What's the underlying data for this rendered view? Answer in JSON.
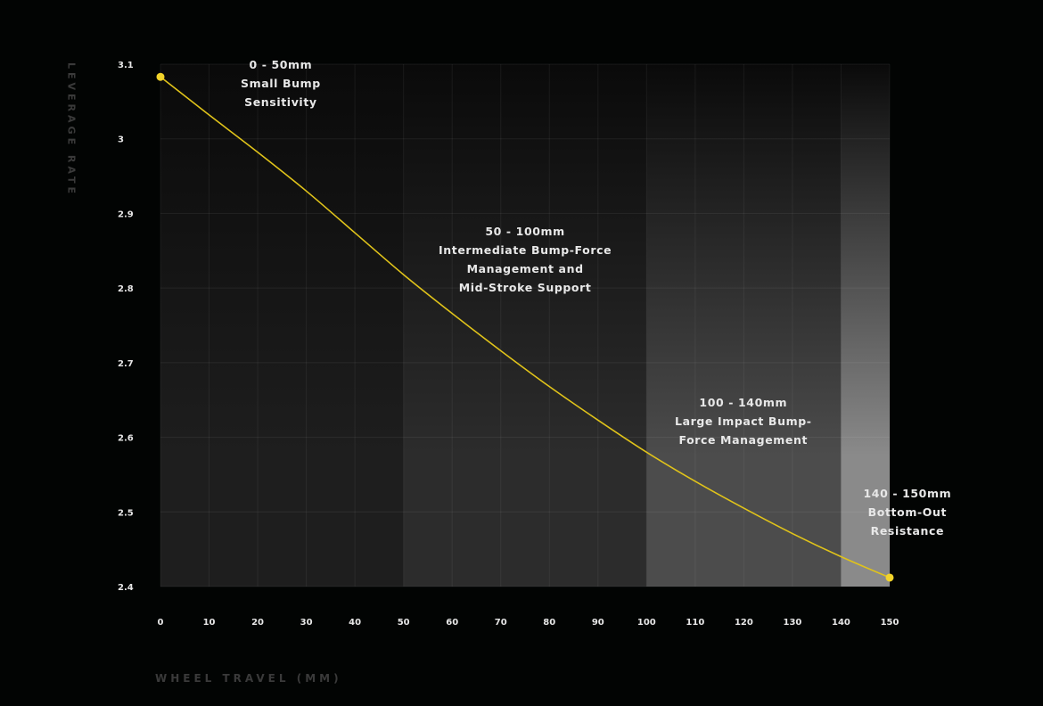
{
  "chart_data": {
    "type": "line",
    "xlabel": "WHEEL TRAVEL (MM)",
    "ylabel": "LEVERAGE RATE",
    "xlim": [
      0,
      150
    ],
    "ylim": [
      2.4,
      3.1
    ],
    "x_ticks": [
      "0",
      "10",
      "20",
      "30",
      "40",
      "50",
      "60",
      "70",
      "80",
      "90",
      "100",
      "110",
      "120",
      "130",
      "140",
      "150"
    ],
    "y_ticks": [
      "2.4",
      "2.5",
      "2.6",
      "2.7",
      "2.8",
      "2.9",
      "3",
      "3.1"
    ],
    "grid": true,
    "series": [
      {
        "color": "#e0c31a",
        "x": [
          0,
          10,
          20,
          30,
          40,
          50,
          60,
          70,
          80,
          90,
          100,
          110,
          120,
          130,
          140,
          150
        ],
        "y": [
          3.083,
          3.032,
          2.982,
          2.93,
          2.874,
          2.818,
          2.766,
          2.716,
          2.668,
          2.623,
          2.58,
          2.541,
          2.505,
          2.471,
          2.44,
          2.412
        ]
      }
    ],
    "endpoints": [
      {
        "x": 0,
        "y": 3.083
      },
      {
        "x": 150,
        "y": 2.412
      }
    ],
    "zones": [
      {
        "x0": 0,
        "x1": 50,
        "lines": [
          "0 - 50mm",
          "Small Bump",
          "Sensitivity"
        ],
        "shade": "#1e1e1e"
      },
      {
        "x0": 50,
        "x1": 100,
        "lines": [
          "50 - 100mm",
          "Intermediate Bump-Force",
          "Management and",
          "Mid-Stroke Support"
        ],
        "shade": "#2c2c2c"
      },
      {
        "x0": 100,
        "x1": 140,
        "lines": [
          "100  - 140mm",
          "Large Impact Bump-",
          "Force Management"
        ],
        "shade": "#4c4c4c"
      },
      {
        "x0": 140,
        "x1": 150,
        "lines": [
          "140 - 150mm",
          "Bottom-Out",
          "Resistance"
        ],
        "shade": "#8a8a8a"
      }
    ]
  }
}
